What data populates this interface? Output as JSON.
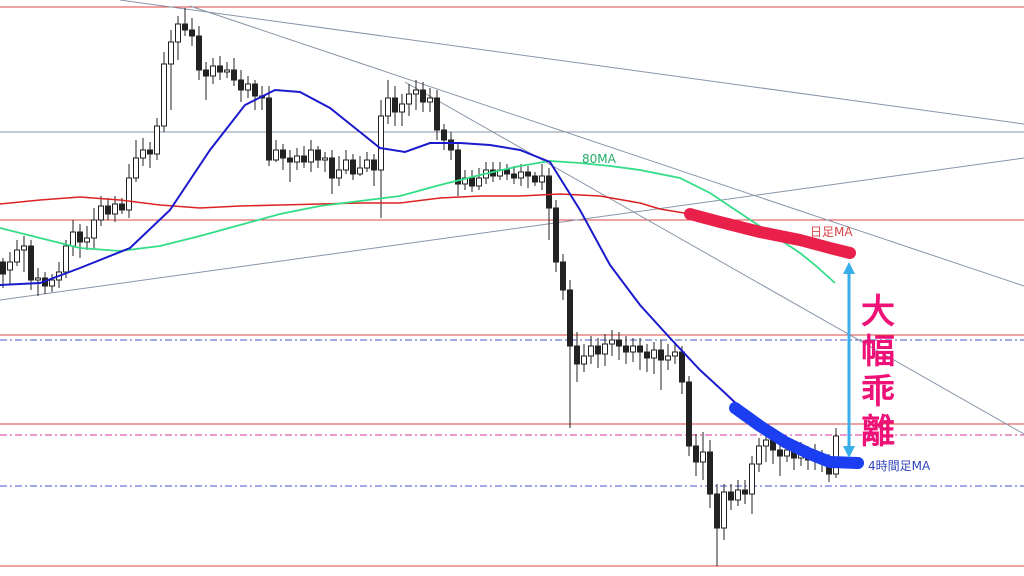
{
  "chart_data": {
    "type": "candlestick",
    "title": "",
    "xlabel": "",
    "ylabel": "",
    "ylim": [
      0,
      576
    ],
    "grid": false,
    "labels": {
      "ma80": "80MA",
      "daily_ma": "日足MA",
      "h4_ma": "4時間足MA",
      "divergence": "大幅乖離"
    },
    "colors": {
      "candle": "#222222",
      "h4_ma": "#1a1acc",
      "ma80": "#33dd88",
      "daily_ma": "#dd2222",
      "daily_ma_highlight": "#e8204a",
      "h4_ma_highlight": "#1a3ef0",
      "arrow": "#3aaee8",
      "divergence_text": "#ee1177",
      "level_line": "#dd4444",
      "dash_blue": "#4455cc",
      "dash_magenta": "#dd3399",
      "trendline": "#8895a8"
    },
    "series": {
      "h4_ma": [
        [
          0,
          285
        ],
        [
          40,
          283
        ],
        [
          80,
          268
        ],
        [
          130,
          248
        ],
        [
          170,
          210
        ],
        [
          210,
          150
        ],
        [
          245,
          105
        ],
        [
          275,
          90
        ],
        [
          300,
          92
        ],
        [
          330,
          108
        ],
        [
          355,
          128
        ],
        [
          380,
          148
        ],
        [
          405,
          152
        ],
        [
          430,
          143
        ],
        [
          460,
          143
        ],
        [
          490,
          145
        ],
        [
          520,
          150
        ],
        [
          550,
          162
        ],
        [
          580,
          210
        ],
        [
          610,
          265
        ],
        [
          640,
          305
        ],
        [
          670,
          338
        ],
        [
          700,
          370
        ],
        [
          725,
          393
        ],
        [
          745,
          412
        ],
        [
          770,
          432
        ],
        [
          800,
          448
        ],
        [
          830,
          458
        ],
        [
          855,
          463
        ]
      ],
      "ma80": [
        [
          0,
          228
        ],
        [
          40,
          238
        ],
        [
          80,
          248
        ],
        [
          120,
          251
        ],
        [
          160,
          246
        ],
        [
          200,
          236
        ],
        [
          240,
          225
        ],
        [
          280,
          214
        ],
        [
          320,
          206
        ],
        [
          360,
          201
        ],
        [
          400,
          196
        ],
        [
          440,
          185
        ],
        [
          480,
          175
        ],
        [
          520,
          166
        ],
        [
          550,
          161
        ],
        [
          580,
          163
        ],
        [
          610,
          166
        ],
        [
          640,
          170
        ],
        [
          680,
          178
        ],
        [
          710,
          193
        ],
        [
          740,
          213
        ],
        [
          770,
          233
        ],
        [
          800,
          253
        ],
        [
          815,
          265
        ],
        [
          835,
          283
        ]
      ],
      "daily_ma": [
        [
          0,
          204
        ],
        [
          40,
          200
        ],
        [
          80,
          197
        ],
        [
          120,
          200
        ],
        [
          160,
          205
        ],
        [
          200,
          208
        ],
        [
          240,
          206
        ],
        [
          280,
          205
        ],
        [
          320,
          204
        ],
        [
          360,
          203
        ],
        [
          400,
          203
        ],
        [
          440,
          198
        ],
        [
          480,
          196
        ],
        [
          520,
          196
        ],
        [
          560,
          194
        ],
        [
          600,
          196
        ],
        [
          640,
          203
        ],
        [
          660,
          209
        ],
        [
          690,
          214
        ],
        [
          720,
          222
        ],
        [
          760,
          232
        ],
        [
          800,
          240
        ],
        [
          850,
          253
        ]
      ],
      "daily_ma_highlight": [
        [
          690,
          214
        ],
        [
          720,
          222
        ],
        [
          760,
          232
        ],
        [
          800,
          240
        ],
        [
          830,
          248
        ],
        [
          850,
          253
        ]
      ],
      "h4_ma_highlight": [
        [
          735,
          408
        ],
        [
          760,
          426
        ],
        [
          785,
          442
        ],
        [
          810,
          454
        ],
        [
          830,
          462
        ],
        [
          858,
          463
        ]
      ],
      "candles": [
        [
          3,
          262,
          274,
          258,
          288
        ],
        [
          10,
          270,
          262,
          252,
          284
        ],
        [
          17,
          262,
          250,
          240,
          266
        ],
        [
          24,
          250,
          246,
          236,
          272
        ],
        [
          31,
          246,
          280,
          240,
          290
        ],
        [
          38,
          280,
          278,
          268,
          296
        ],
        [
          45,
          278,
          286,
          272,
          294
        ],
        [
          52,
          286,
          280,
          274,
          292
        ],
        [
          59,
          280,
          272,
          262,
          288
        ],
        [
          66,
          272,
          246,
          240,
          278
        ],
        [
          73,
          246,
          232,
          220,
          256
        ],
        [
          80,
          232,
          242,
          224,
          258
        ],
        [
          87,
          242,
          238,
          226,
          250
        ],
        [
          94,
          238,
          220,
          208,
          248
        ],
        [
          101,
          220,
          206,
          196,
          226
        ],
        [
          108,
          206,
          214,
          198,
          220
        ],
        [
          115,
          214,
          204,
          196,
          222
        ],
        [
          122,
          204,
          210,
          198,
          214
        ],
        [
          129,
          210,
          178,
          164,
          218
        ],
        [
          136,
          178,
          158,
          140,
          182
        ],
        [
          143,
          158,
          150,
          138,
          166
        ],
        [
          150,
          150,
          154,
          142,
          168
        ],
        [
          157,
          154,
          126,
          118,
          160
        ],
        [
          164,
          126,
          64,
          52,
          132
        ],
        [
          171,
          64,
          42,
          30,
          110
        ],
        [
          178,
          42,
          24,
          16,
          60
        ],
        [
          185,
          24,
          30,
          8,
          36
        ],
        [
          192,
          30,
          36,
          18,
          46
        ],
        [
          199,
          36,
          70,
          26,
          80
        ],
        [
          206,
          70,
          76,
          62,
          100
        ],
        [
          213,
          76,
          66,
          58,
          84
        ],
        [
          220,
          66,
          72,
          56,
          80
        ],
        [
          227,
          72,
          70,
          62,
          78
        ],
        [
          234,
          70,
          80,
          58,
          86
        ],
        [
          241,
          80,
          90,
          70,
          102
        ],
        [
          248,
          90,
          84,
          76,
          98
        ],
        [
          255,
          84,
          96,
          80,
          110
        ],
        [
          262,
          96,
          98,
          86,
          110
        ],
        [
          269,
          98,
          160,
          86,
          166
        ],
        [
          276,
          160,
          150,
          140,
          162
        ],
        [
          283,
          150,
          158,
          144,
          170
        ],
        [
          290,
          158,
          162,
          150,
          182
        ],
        [
          297,
          162,
          156,
          148,
          170
        ],
        [
          304,
          156,
          162,
          146,
          168
        ],
        [
          311,
          162,
          150,
          140,
          172
        ],
        [
          318,
          150,
          160,
          146,
          168
        ],
        [
          325,
          160,
          158,
          152,
          172
        ],
        [
          332,
          158,
          178,
          150,
          194
        ],
        [
          339,
          178,
          170,
          156,
          186
        ],
        [
          346,
          170,
          160,
          150,
          174
        ],
        [
          353,
          160,
          174,
          154,
          180
        ],
        [
          360,
          174,
          168,
          156,
          176
        ],
        [
          367,
          168,
          160,
          152,
          172
        ],
        [
          374,
          160,
          170,
          154,
          186
        ],
        [
          381,
          170,
          116,
          100,
          218
        ],
        [
          388,
          116,
          98,
          80,
          124
        ],
        [
          395,
          98,
          112,
          86,
          126
        ],
        [
          402,
          112,
          104,
          94,
          126
        ],
        [
          409,
          104,
          94,
          84,
          116
        ],
        [
          416,
          94,
          90,
          80,
          110
        ],
        [
          423,
          90,
          102,
          82,
          112
        ],
        [
          430,
          102,
          98,
          88,
          112
        ],
        [
          437,
          98,
          130,
          90,
          140
        ],
        [
          444,
          130,
          140,
          124,
          150
        ],
        [
          451,
          140,
          150,
          132,
          160
        ],
        [
          458,
          150,
          184,
          144,
          196
        ],
        [
          465,
          184,
          178,
          170,
          190
        ],
        [
          472,
          178,
          186,
          170,
          192
        ],
        [
          479,
          186,
          178,
          168,
          190
        ],
        [
          486,
          178,
          170,
          162,
          184
        ],
        [
          493,
          170,
          176,
          162,
          182
        ],
        [
          500,
          176,
          170,
          162,
          180
        ],
        [
          507,
          170,
          174,
          164,
          180
        ],
        [
          514,
          174,
          178,
          166,
          184
        ],
        [
          521,
          178,
          172,
          164,
          186
        ],
        [
          528,
          172,
          176,
          166,
          188
        ],
        [
          535,
          176,
          182,
          172,
          186
        ],
        [
          542,
          182,
          176,
          164,
          190
        ],
        [
          549,
          176,
          208,
          168,
          240
        ],
        [
          556,
          208,
          262,
          200,
          272
        ],
        [
          563,
          262,
          290,
          254,
          300
        ],
        [
          570,
          290,
          346,
          280,
          428
        ],
        [
          577,
          346,
          364,
          332,
          382
        ],
        [
          584,
          364,
          356,
          344,
          372
        ],
        [
          591,
          356,
          346,
          336,
          364
        ],
        [
          598,
          346,
          354,
          338,
          368
        ],
        [
          605,
          354,
          344,
          334,
          366
        ],
        [
          612,
          344,
          340,
          330,
          356
        ],
        [
          619,
          340,
          346,
          332,
          360
        ],
        [
          626,
          346,
          352,
          336,
          364
        ],
        [
          633,
          352,
          346,
          338,
          362
        ],
        [
          640,
          346,
          352,
          338,
          370
        ],
        [
          647,
          352,
          358,
          344,
          372
        ],
        [
          654,
          358,
          350,
          342,
          374
        ],
        [
          661,
          350,
          360,
          340,
          390
        ],
        [
          668,
          360,
          356,
          344,
          370
        ],
        [
          675,
          356,
          352,
          342,
          364
        ],
        [
          682,
          352,
          382,
          346,
          394
        ],
        [
          689,
          382,
          446,
          376,
          456
        ],
        [
          696,
          446,
          462,
          434,
          476
        ],
        [
          703,
          462,
          452,
          432,
          480
        ],
        [
          710,
          452,
          494,
          440,
          508
        ],
        [
          717,
          494,
          528,
          484,
          566
        ],
        [
          724,
          528,
          492,
          484,
          540
        ],
        [
          731,
          492,
          500,
          484,
          510
        ],
        [
          738,
          500,
          490,
          480,
          506
        ],
        [
          745,
          490,
          494,
          480,
          504
        ],
        [
          752,
          494,
          464,
          456,
          514
        ],
        [
          759,
          464,
          446,
          438,
          472
        ],
        [
          766,
          446,
          440,
          432,
          462
        ],
        [
          773,
          440,
          450,
          434,
          464
        ],
        [
          780,
          450,
          456,
          440,
          476
        ],
        [
          787,
          456,
          450,
          442,
          462
        ],
        [
          794,
          450,
          458,
          444,
          470
        ],
        [
          801,
          458,
          452,
          442,
          466
        ],
        [
          808,
          452,
          460,
          446,
          470
        ],
        [
          815,
          460,
          454,
          444,
          470
        ],
        [
          822,
          454,
          462,
          450,
          472
        ],
        [
          829,
          462,
          474,
          454,
          482
        ],
        [
          836,
          474,
          436,
          428,
          478
        ]
      ]
    },
    "annotations": {
      "levels_solid": [
        7,
        220,
        335,
        424,
        566
      ],
      "level_gray": 132,
      "dash_blue": [
        340,
        486
      ],
      "dash_magenta": 435,
      "trendlines": [
        [
          [
            120,
            0
          ],
          [
            1024,
            124
          ]
        ],
        [
          [
            190,
            6
          ],
          [
            1024,
            286
          ]
        ],
        [
          [
            405,
            82
          ],
          [
            1024,
            434
          ]
        ],
        [
          [
            0,
            300
          ],
          [
            1024,
            158
          ]
        ]
      ],
      "arrow": {
        "x": 849,
        "y_top": 262,
        "y_bottom": 458
      }
    }
  }
}
